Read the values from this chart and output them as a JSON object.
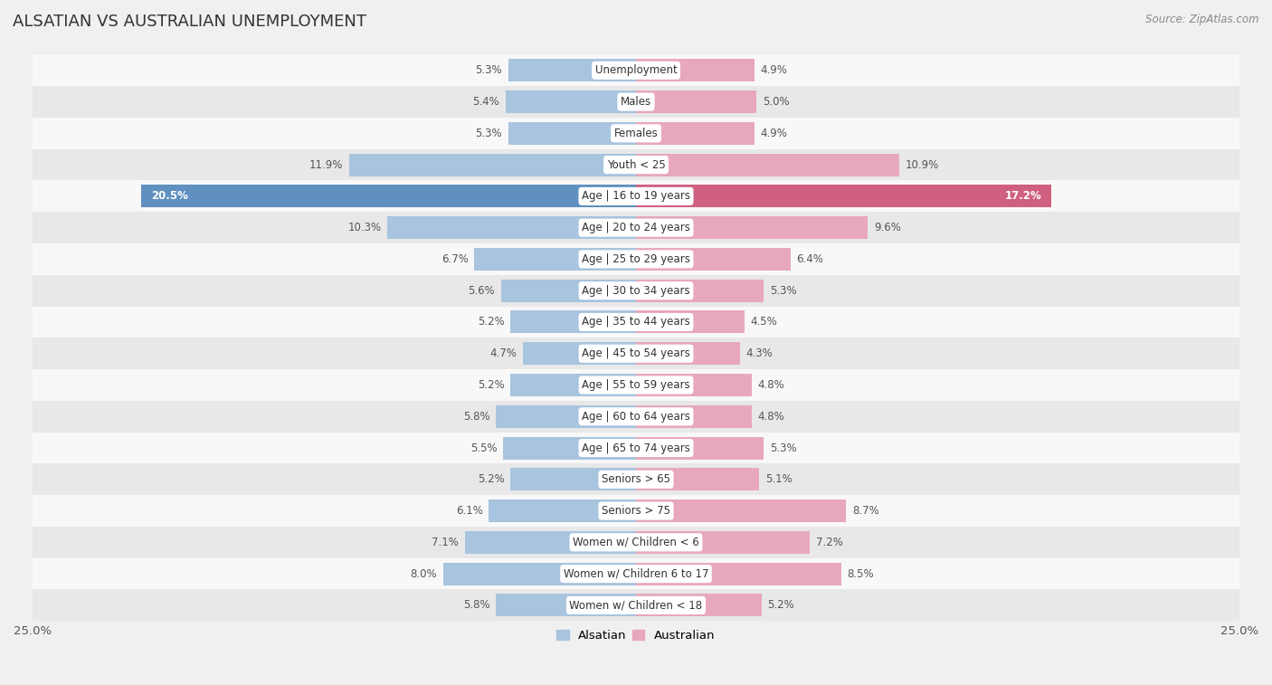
{
  "title": "ALSATIAN VS AUSTRALIAN UNEMPLOYMENT",
  "source": "Source: ZipAtlas.com",
  "categories": [
    "Unemployment",
    "Males",
    "Females",
    "Youth < 25",
    "Age | 16 to 19 years",
    "Age | 20 to 24 years",
    "Age | 25 to 29 years",
    "Age | 30 to 34 years",
    "Age | 35 to 44 years",
    "Age | 45 to 54 years",
    "Age | 55 to 59 years",
    "Age | 60 to 64 years",
    "Age | 65 to 74 years",
    "Seniors > 65",
    "Seniors > 75",
    "Women w/ Children < 6",
    "Women w/ Children 6 to 17",
    "Women w/ Children < 18"
  ],
  "alsatian": [
    5.3,
    5.4,
    5.3,
    11.9,
    20.5,
    10.3,
    6.7,
    5.6,
    5.2,
    4.7,
    5.2,
    5.8,
    5.5,
    5.2,
    6.1,
    7.1,
    8.0,
    5.8
  ],
  "australian": [
    4.9,
    5.0,
    4.9,
    10.9,
    17.2,
    9.6,
    6.4,
    5.3,
    4.5,
    4.3,
    4.8,
    4.8,
    5.3,
    5.1,
    8.7,
    7.2,
    8.5,
    5.2
  ],
  "alsatian_color": "#a8c4de",
  "australian_color": "#e8a8bc",
  "alsatian_highlight_color": "#6090c0",
  "australian_highlight_color": "#d06080",
  "background_color": "#f0f0f0",
  "row_bg_light": "#f8f8f8",
  "row_bg_dark": "#e8e8e8",
  "xlim": 25.0,
  "bar_height": 0.72,
  "label_fontsize": 8.5,
  "category_fontsize": 8.5,
  "title_fontsize": 13,
  "source_fontsize": 8.5
}
